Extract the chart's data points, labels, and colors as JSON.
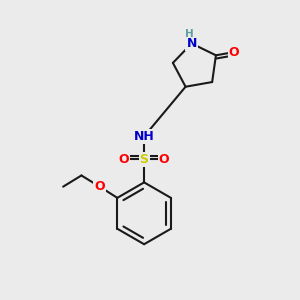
{
  "bg_color": "#ebebeb",
  "bond_color": "#1a1a1a",
  "bond_width": 1.5,
  "colors": {
    "N": "#0000cc",
    "O": "#ff0000",
    "S": "#cccc00",
    "H": "#5f9ea0",
    "C": "#1a1a1a"
  },
  "font_size_atom": 9,
  "font_size_H": 7.5
}
